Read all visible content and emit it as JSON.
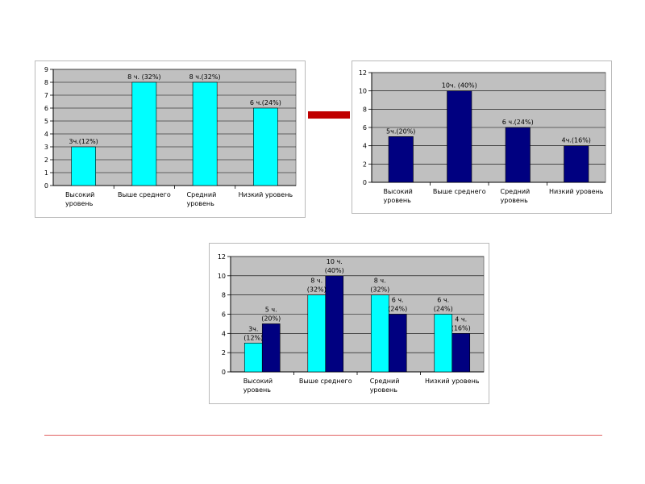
{
  "chart_data": [
    {
      "type": "bar",
      "categories": [
        [
          "Высокий",
          "уровень"
        ],
        [
          "Выше среднего"
        ],
        [
          "Средний",
          "уровень"
        ],
        [
          "Низкий уровень"
        ]
      ],
      "series": [
        {
          "values": [
            3,
            8,
            8,
            6
          ],
          "labels": [
            [
              "3ч.(12%)"
            ],
            [
              "8 ч. (32%)"
            ],
            [
              "8 ч.(32%)"
            ],
            [
              "6 ч.(24%)"
            ]
          ],
          "color": "#00ffff"
        }
      ],
      "ylim": [
        0,
        9
      ],
      "yticks": [
        0,
        1,
        2,
        3,
        4,
        5,
        6,
        7,
        8,
        9
      ],
      "grid": true,
      "plot_bg": "#c0c0c0"
    },
    {
      "type": "bar",
      "categories": [
        [
          "Высокий",
          "уровень"
        ],
        [
          "Выше среднего"
        ],
        [
          "Средний",
          "уровень"
        ],
        [
          "Низкий уровень"
        ]
      ],
      "series": [
        {
          "values": [
            5,
            10,
            6,
            4
          ],
          "labels": [
            [
              "5ч.(20%)"
            ],
            [
              "10ч. (40%)"
            ],
            [
              "6 ч.(24%)"
            ],
            [
              "4ч.(16%)"
            ]
          ],
          "color": "#000080"
        }
      ],
      "ylim": [
        0,
        12
      ],
      "yticks": [
        0,
        2,
        4,
        6,
        8,
        10,
        12
      ],
      "grid": true,
      "plot_bg": "#c0c0c0"
    },
    {
      "type": "bar",
      "categories": [
        [
          "Высокий",
          "уровень"
        ],
        [
          "Выше среднего"
        ],
        [
          "Средний",
          "уровень"
        ],
        [
          "Низкий уровень"
        ]
      ],
      "series": [
        {
          "values": [
            3,
            8,
            8,
            6
          ],
          "labels": [
            [
              "3ч.",
              "(12%)"
            ],
            [
              "8 ч.",
              "(32%)"
            ],
            [
              "8 ч.",
              "(32%)"
            ],
            [
              "6 ч.",
              "(24%)"
            ]
          ],
          "color": "#00ffff"
        },
        {
          "values": [
            5,
            10,
            6,
            4
          ],
          "labels": [
            [
              "5 ч.",
              "(20%)"
            ],
            [
              "10 ч.",
              "(40%)"
            ],
            [
              "6 ч.",
              "(24%)"
            ],
            [
              "4 ч.",
              "(16%)"
            ]
          ],
          "color": "#000080"
        }
      ],
      "ylim": [
        0,
        12
      ],
      "yticks": [
        0,
        2,
        4,
        6,
        8,
        10,
        12
      ],
      "grid": true,
      "plot_bg": "#c0c0c0"
    }
  ],
  "colors": {
    "connector": "#c00000",
    "footer_rule": "#e06060"
  }
}
